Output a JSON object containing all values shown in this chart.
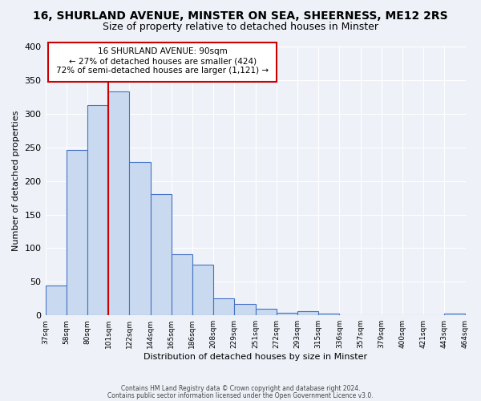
{
  "title": "16, SHURLAND AVENUE, MINSTER ON SEA, SHEERNESS, ME12 2RS",
  "subtitle": "Size of property relative to detached houses in Minster",
  "xlabel": "Distribution of detached houses by size in Minster",
  "ylabel": "Number of detached properties",
  "bar_values": [
    44,
    246,
    313,
    334,
    228,
    180,
    91,
    75,
    25,
    17,
    10,
    4,
    6,
    3,
    0,
    0,
    0,
    0,
    0,
    3
  ],
  "bar_labels": [
    "37sqm",
    "58sqm",
    "80sqm",
    "101sqm",
    "122sqm",
    "144sqm",
    "165sqm",
    "186sqm",
    "208sqm",
    "229sqm",
    "251sqm",
    "272sqm",
    "293sqm",
    "315sqm",
    "336sqm",
    "357sqm",
    "379sqm",
    "400sqm",
    "421sqm",
    "443sqm",
    "464sqm"
  ],
  "bar_color": "#c9daf0",
  "bar_edge_color": "#4472c4",
  "ylim": [
    0,
    400
  ],
  "yticks": [
    0,
    50,
    100,
    150,
    200,
    250,
    300,
    350,
    400
  ],
  "property_line_color": "#cc0000",
  "annotation_title": "16 SHURLAND AVENUE: 90sqm",
  "annotation_line1": "← 27% of detached houses are smaller (424)",
  "annotation_line2": "72% of semi-detached houses are larger (1,121) →",
  "annotation_box_color": "#cc0000",
  "footer_line1": "Contains HM Land Registry data © Crown copyright and database right 2024.",
  "footer_line2": "Contains public sector information licensed under the Open Government Licence v3.0.",
  "background_color": "#eef2f8",
  "grid_color": "#ffffff",
  "title_fontsize": 10,
  "subtitle_fontsize": 9
}
